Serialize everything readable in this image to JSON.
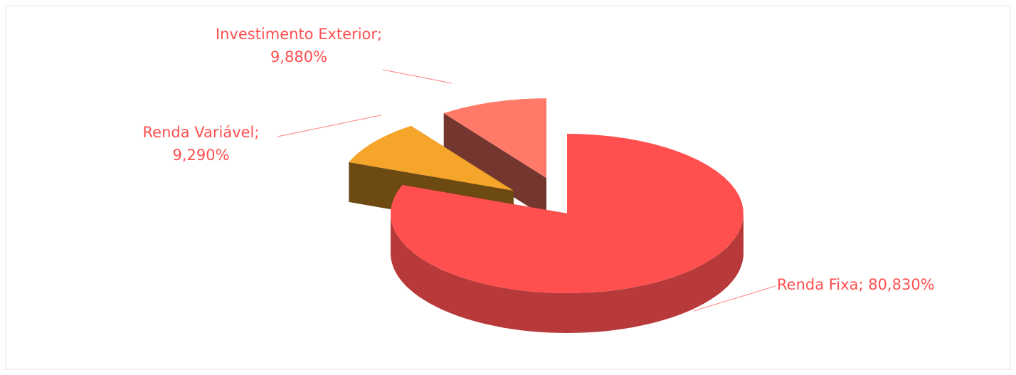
{
  "chart_data": {
    "type": "pie3d",
    "categories": [
      "Renda Fixa",
      "Renda Variável",
      "Investimento Exterior"
    ],
    "values": [
      80.83,
      9.29,
      9.88
    ],
    "value_labels": [
      "80,830%",
      "9,290%",
      "9,880%"
    ],
    "label_separator": "; ",
    "colors": [
      "#ff4f4f",
      "#f5a52a",
      "#ff7a68"
    ],
    "exploded": [
      false,
      true,
      true
    ]
  }
}
